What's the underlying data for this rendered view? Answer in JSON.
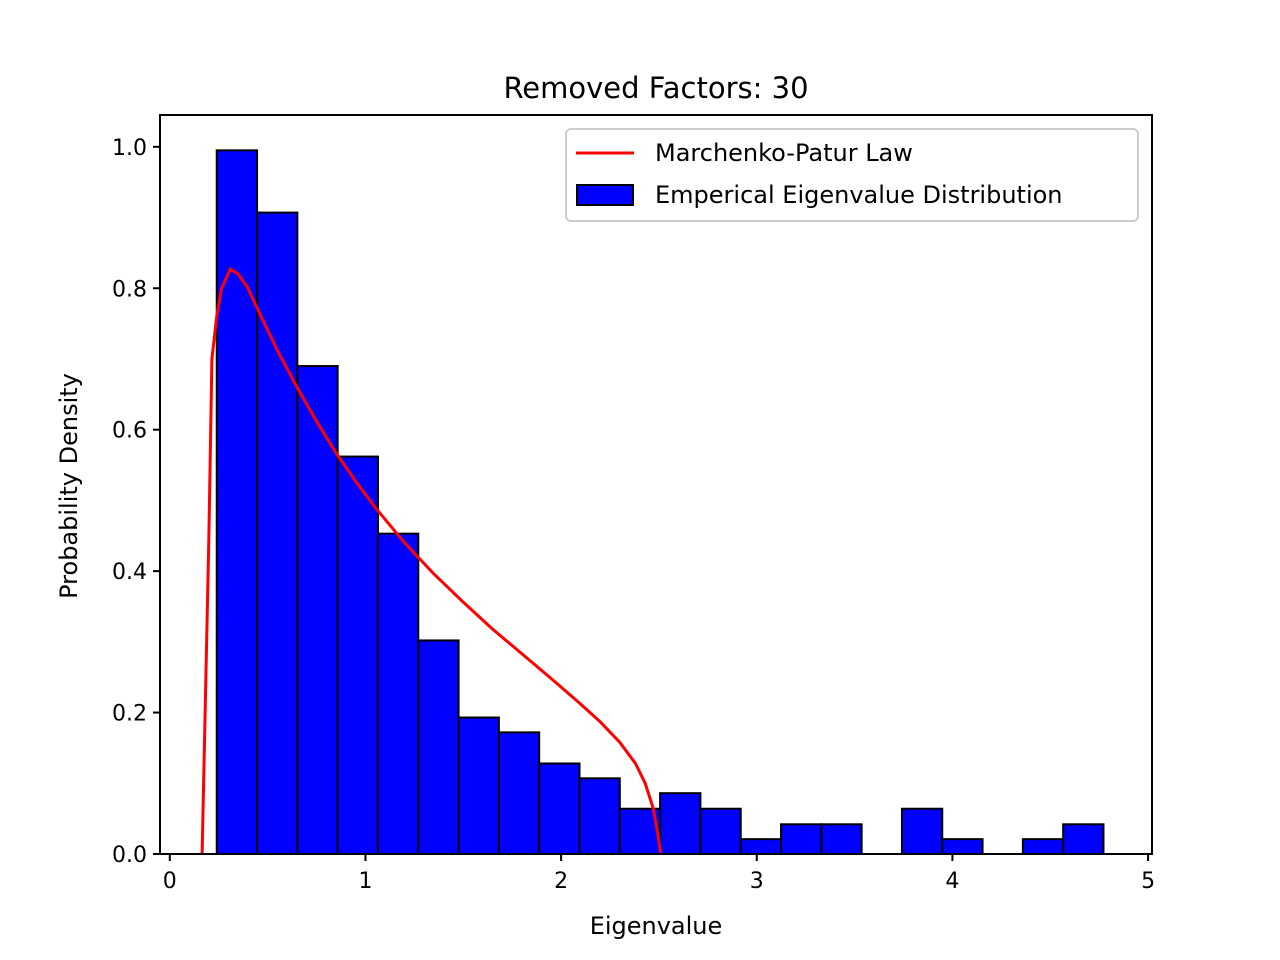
{
  "chart_data": {
    "type": "bar",
    "title": "Removed Factors: 30",
    "xlabel": "Eigenvalue",
    "ylabel": "Probability Density",
    "xlim": [
      -0.05,
      5.02
    ],
    "ylim": [
      0,
      1.045
    ],
    "xticks": [
      0,
      1,
      2,
      3,
      4,
      5
    ],
    "yticks": [
      0.0,
      0.2,
      0.4,
      0.6,
      0.8,
      1.0
    ],
    "xtick_labels": [
      "0",
      "1",
      "2",
      "3",
      "4",
      "5"
    ],
    "ytick_labels": [
      "0.0",
      "0.2",
      "0.4",
      "0.6",
      "0.8",
      "1.0"
    ],
    "grid": false,
    "legend_position": "top-right",
    "series": [
      {
        "name": "Marchenko-Patur Law",
        "type": "line",
        "color": "#ff0000",
        "points": [
          [
            0.165,
            0.0
          ],
          [
            0.2,
            0.45
          ],
          [
            0.215,
            0.7
          ],
          [
            0.24,
            0.76
          ],
          [
            0.265,
            0.8
          ],
          [
            0.31,
            0.827
          ],
          [
            0.35,
            0.82
          ],
          [
            0.4,
            0.8
          ],
          [
            0.45,
            0.77
          ],
          [
            0.55,
            0.712
          ],
          [
            0.65,
            0.66
          ],
          [
            0.75,
            0.612
          ],
          [
            0.85,
            0.567
          ],
          [
            0.95,
            0.527
          ],
          [
            1.05,
            0.49
          ],
          [
            1.2,
            0.44
          ],
          [
            1.35,
            0.396
          ],
          [
            1.5,
            0.356
          ],
          [
            1.65,
            0.318
          ],
          [
            1.8,
            0.283
          ],
          [
            1.95,
            0.248
          ],
          [
            2.1,
            0.212
          ],
          [
            2.2,
            0.187
          ],
          [
            2.3,
            0.158
          ],
          [
            2.38,
            0.128
          ],
          [
            2.43,
            0.1
          ],
          [
            2.47,
            0.065
          ],
          [
            2.49,
            0.035
          ],
          [
            2.51,
            0.0
          ]
        ]
      },
      {
        "name": "Emperical Eigenvalue Distribution",
        "type": "bar",
        "color": "#0000ff",
        "edgecolor": "#000000",
        "bin_edges": [
          0.24,
          0.446,
          0.652,
          0.858,
          1.064,
          1.27,
          1.476,
          1.682,
          1.888,
          2.094,
          2.3,
          2.506,
          2.712,
          2.918,
          3.124,
          3.33,
          3.536,
          3.742,
          3.948,
          4.154,
          4.36,
          4.566,
          4.772
        ],
        "values": [
          0.995,
          0.907,
          0.69,
          0.562,
          0.453,
          0.302,
          0.193,
          0.172,
          0.128,
          0.107,
          0.064,
          0.086,
          0.064,
          0.021,
          0.042,
          0.042,
          0.0,
          0.064,
          0.021,
          0.0,
          0.021,
          0.042
        ]
      }
    ]
  }
}
